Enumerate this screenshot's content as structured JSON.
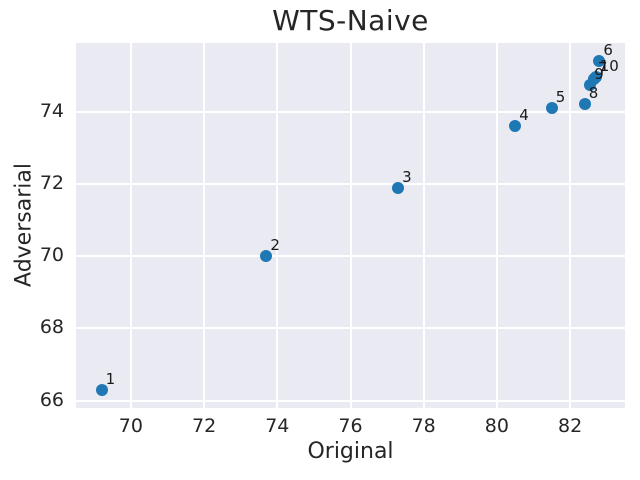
{
  "chart_data": {
    "type": "scatter",
    "title": "WTS-Naive",
    "xlabel": "Original",
    "ylabel": "Adversarial",
    "xlim": [
      68.5,
      83.5
    ],
    "ylim": [
      65.8,
      75.9
    ],
    "x_ticks": [
      70,
      72,
      74,
      76,
      78,
      80,
      82
    ],
    "y_ticks": [
      66,
      68,
      70,
      72,
      74
    ],
    "grid": true,
    "legend": "none",
    "colors": {
      "point": "#1f77b4",
      "plot_background": "#eaeaf2",
      "gridline": "#ffffff",
      "text": "#262626"
    },
    "points": [
      {
        "label": "1",
        "x": 69.2,
        "y": 66.3
      },
      {
        "label": "2",
        "x": 73.7,
        "y": 70.0
      },
      {
        "label": "3",
        "x": 77.3,
        "y": 71.9
      },
      {
        "label": "4",
        "x": 80.5,
        "y": 73.6
      },
      {
        "label": "5",
        "x": 81.5,
        "y": 74.1
      },
      {
        "label": "6",
        "x": 82.8,
        "y": 75.4
      },
      {
        "label": "7",
        "x": 82.65,
        "y": 74.9
      },
      {
        "label": "8",
        "x": 82.4,
        "y": 74.2
      },
      {
        "label": "9",
        "x": 82.55,
        "y": 74.75
      },
      {
        "label": "10",
        "x": 82.7,
        "y": 74.95
      }
    ]
  }
}
